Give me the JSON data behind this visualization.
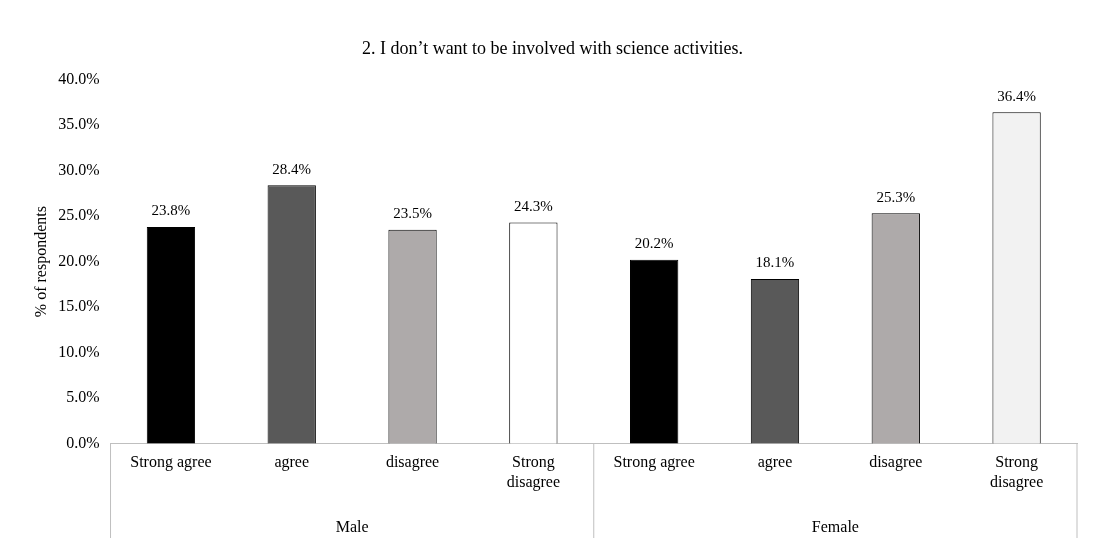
{
  "chart_data": {
    "type": "bar",
    "title": "2. I don’t want to be involved with science activities.",
    "ylabel": "% of respondents",
    "categories": [
      "Strong agree",
      "agree",
      "disagree",
      "Strong disagree",
      "Strong agree",
      "agree",
      "disagree",
      "Strong disagree"
    ],
    "values": [
      23.8,
      28.4,
      23.5,
      24.3,
      20.2,
      18.1,
      25.3,
      36.4
    ],
    "colors": [
      "#000000",
      "#595959",
      "#aeaaaa",
      "#ffffff",
      "#000000",
      "#595959",
      "#aeaaaa",
      "#f2f2f2"
    ],
    "value_labels": [
      "23.8%",
      "28.4%",
      "23.5%",
      "24.3%",
      "20.2%",
      "18.1%",
      "25.3%",
      "36.4%"
    ],
    "ylim": [
      0,
      40
    ],
    "yticks": [
      {
        "value": 0,
        "label": "0.0%"
      },
      {
        "value": 5,
        "label": "5.0%"
      },
      {
        "value": 10,
        "label": "10.0%"
      },
      {
        "value": 15,
        "label": "15.0%"
      },
      {
        "value": 20,
        "label": "20.0%"
      },
      {
        "value": 25,
        "label": "25.0%"
      },
      {
        "value": 30,
        "label": "30.0%"
      },
      {
        "value": 35,
        "label": "35.0%"
      },
      {
        "value": 40,
        "label": "40.0%"
      }
    ],
    "grid": false,
    "legend": false,
    "annotations": [
      "Male",
      "Female"
    ]
  }
}
